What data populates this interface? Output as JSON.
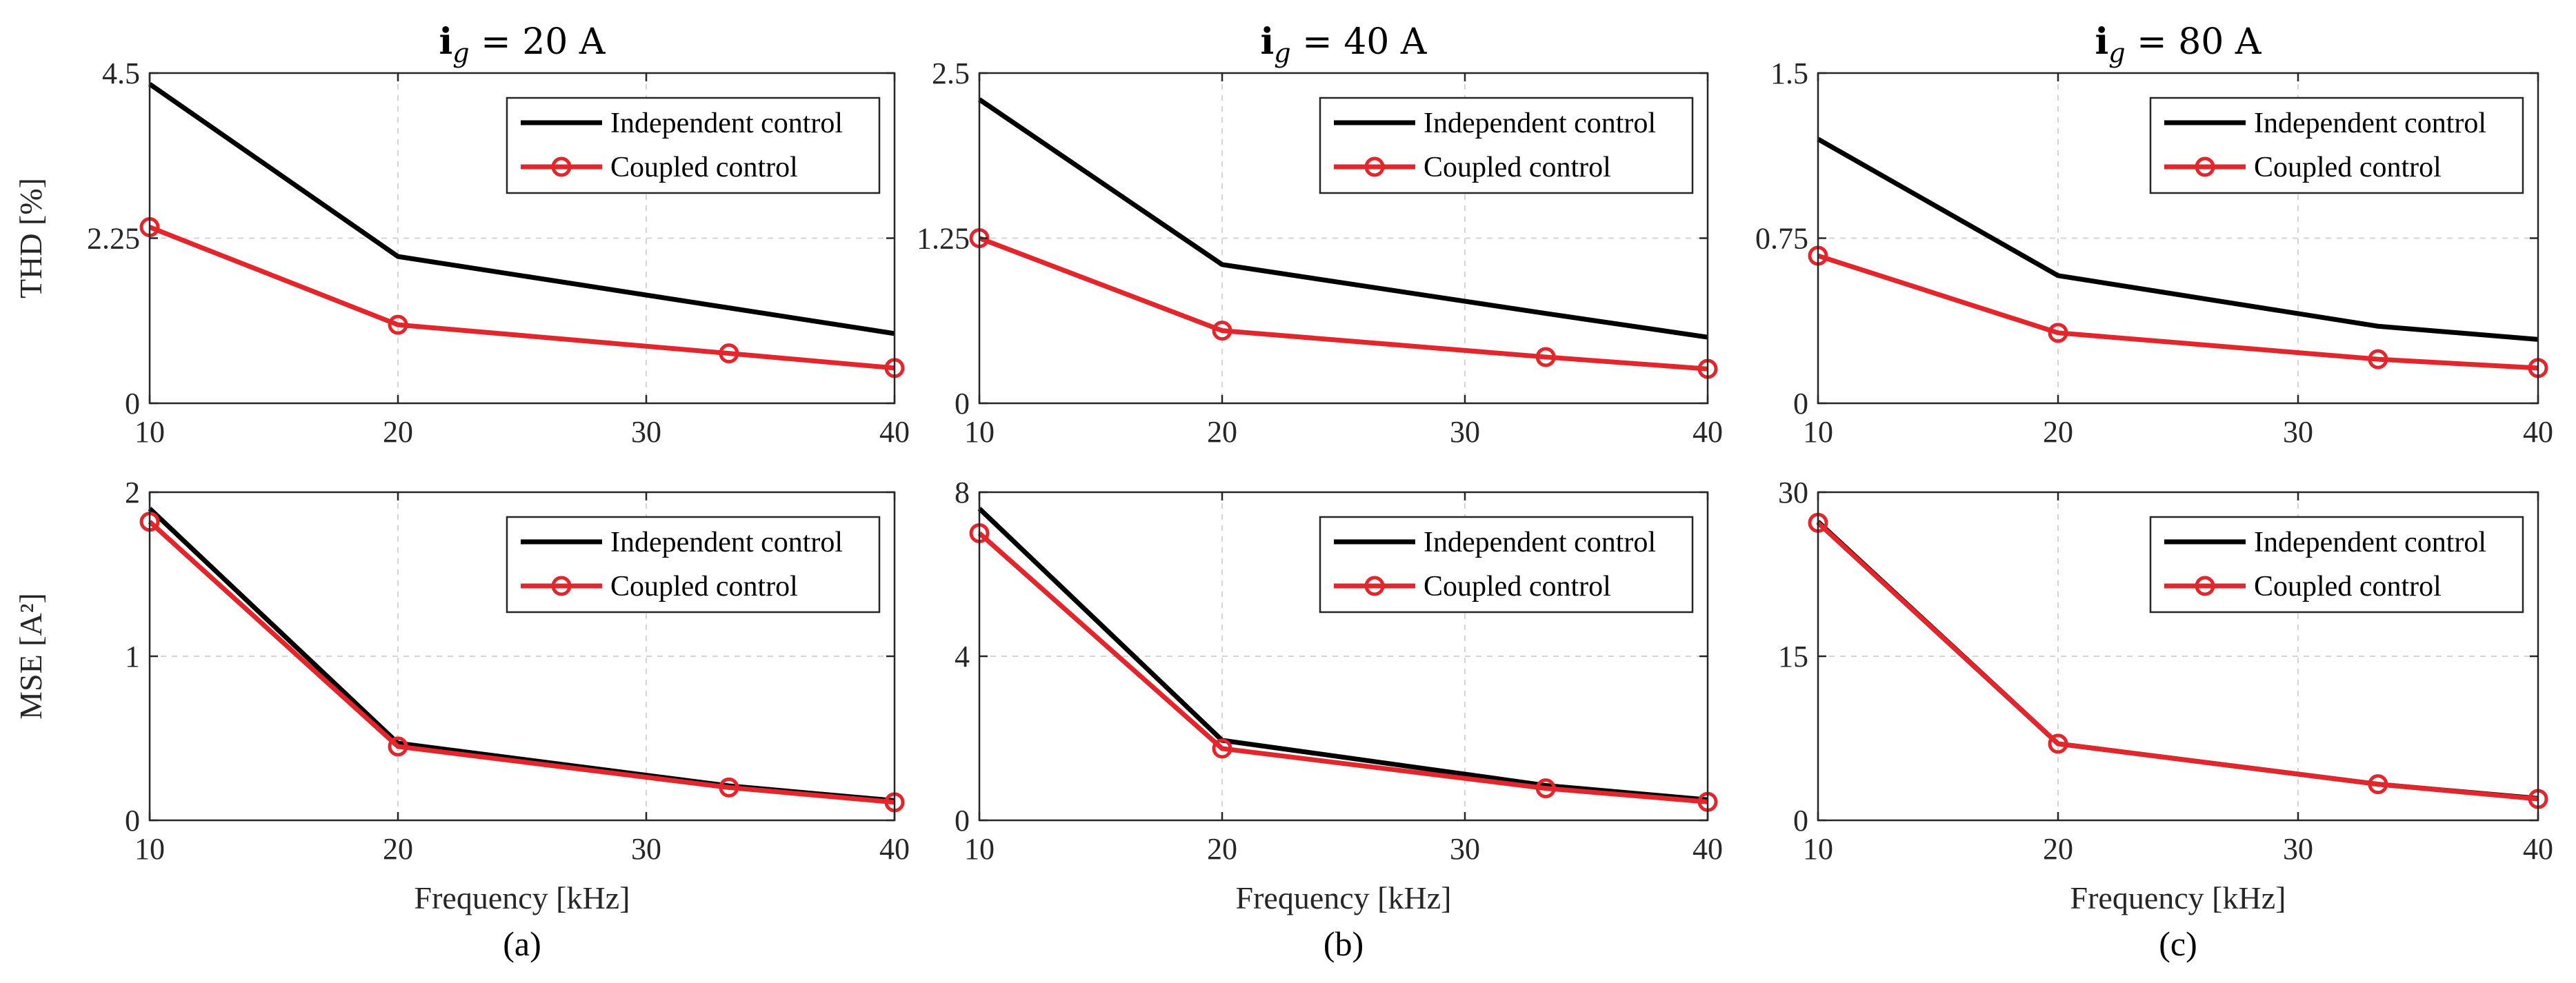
{
  "colors": {
    "independent": "#000000",
    "coupled": "#e3262b"
  },
  "chart_data": [
    {
      "type": "line",
      "panel": "a",
      "row": "top",
      "title": "i_g = 20 A",
      "ylabel": "THD [%]",
      "xlabel": "",
      "xlim": [
        10,
        40
      ],
      "ylim": [
        0,
        4.5
      ],
      "xticks": [
        10,
        20,
        30,
        40
      ],
      "yticks": [
        0,
        2.25,
        4.5
      ],
      "xtick_labels": [
        "10",
        "20",
        "30",
        "40"
      ],
      "ytick_labels": [
        "0",
        "2.25",
        "4.5"
      ],
      "grid": true,
      "legend": "top-right",
      "series": [
        {
          "name": "Independent control",
          "x": [
            10,
            20,
            33.33,
            40
          ],
          "y": [
            4.35,
            2.0,
            1.3,
            0.95
          ],
          "markers": false
        },
        {
          "name": "Coupled control",
          "x": [
            10,
            20,
            33.33,
            40
          ],
          "y": [
            2.4,
            1.07,
            0.68,
            0.48
          ],
          "markers": true
        }
      ]
    },
    {
      "type": "line",
      "panel": "b",
      "row": "top",
      "title": "i_g = 40 A",
      "ylabel": "",
      "xlabel": "",
      "xlim": [
        10,
        40
      ],
      "ylim": [
        0,
        2.5
      ],
      "xticks": [
        10,
        20,
        30,
        40
      ],
      "yticks": [
        0,
        1.25,
        2.5
      ],
      "xtick_labels": [
        "10",
        "20",
        "30",
        "40"
      ],
      "ytick_labels": [
        "0",
        "1.25",
        "2.5"
      ],
      "grid": true,
      "legend": "top-right",
      "series": [
        {
          "name": "Independent control",
          "x": [
            10,
            20,
            33.33,
            40
          ],
          "y": [
            2.3,
            1.05,
            0.68,
            0.5
          ],
          "markers": false
        },
        {
          "name": "Coupled control",
          "x": [
            10,
            20,
            33.33,
            40
          ],
          "y": [
            1.25,
            0.55,
            0.35,
            0.26
          ],
          "markers": true
        }
      ]
    },
    {
      "type": "line",
      "panel": "c",
      "row": "top",
      "title": "i_g = 80 A",
      "ylabel": "",
      "xlabel": "",
      "xlim": [
        10,
        40
      ],
      "ylim": [
        0,
        1.5
      ],
      "xticks": [
        10,
        20,
        30,
        40
      ],
      "yticks": [
        0,
        0.75,
        1.5
      ],
      "xtick_labels": [
        "10",
        "20",
        "30",
        "40"
      ],
      "ytick_labels": [
        "0",
        "0.75",
        "1.5"
      ],
      "grid": true,
      "legend": "top-right",
      "series": [
        {
          "name": "Independent control",
          "x": [
            10,
            20,
            33.33,
            40
          ],
          "y": [
            1.2,
            0.58,
            0.35,
            0.29
          ],
          "markers": false
        },
        {
          "name": "Coupled control",
          "x": [
            10,
            20,
            33.33,
            40
          ],
          "y": [
            0.67,
            0.32,
            0.2,
            0.16
          ],
          "markers": true
        }
      ]
    },
    {
      "type": "line",
      "panel": "a",
      "row": "bottom",
      "title": "",
      "ylabel": "MSE [A²]",
      "xlabel": "Frequency [kHz]",
      "caption": "(a)",
      "xlim": [
        10,
        40
      ],
      "ylim": [
        0,
        2
      ],
      "xticks": [
        10,
        20,
        30,
        40
      ],
      "yticks": [
        0,
        1,
        2
      ],
      "xtick_labels": [
        "10",
        "20",
        "30",
        "40"
      ],
      "ytick_labels": [
        "0",
        "1",
        "2"
      ],
      "grid": true,
      "legend": "top-right",
      "series": [
        {
          "name": "Independent control",
          "x": [
            10,
            20,
            33.33,
            40
          ],
          "y": [
            1.9,
            0.47,
            0.21,
            0.12
          ],
          "markers": false
        },
        {
          "name": "Coupled control",
          "x": [
            10,
            20,
            33.33,
            40
          ],
          "y": [
            1.82,
            0.45,
            0.2,
            0.11
          ],
          "markers": true
        }
      ]
    },
    {
      "type": "line",
      "panel": "b",
      "row": "bottom",
      "title": "",
      "ylabel": "",
      "xlabel": "Frequency [kHz]",
      "caption": "(b)",
      "xlim": [
        10,
        40
      ],
      "ylim": [
        0,
        8
      ],
      "xticks": [
        10,
        20,
        30,
        40
      ],
      "yticks": [
        0,
        4,
        8
      ],
      "xtick_labels": [
        "10",
        "20",
        "30",
        "40"
      ],
      "ytick_labels": [
        "0",
        "4",
        "8"
      ],
      "grid": true,
      "legend": "top-right",
      "series": [
        {
          "name": "Independent control",
          "x": [
            10,
            20,
            33.33,
            40
          ],
          "y": [
            7.6,
            1.95,
            0.85,
            0.5
          ],
          "markers": false
        },
        {
          "name": "Coupled control",
          "x": [
            10,
            20,
            33.33,
            40
          ],
          "y": [
            7.0,
            1.75,
            0.78,
            0.45
          ],
          "markers": true
        }
      ]
    },
    {
      "type": "line",
      "panel": "c",
      "row": "bottom",
      "title": "",
      "ylabel": "",
      "xlabel": "Frequency [kHz]",
      "caption": "(c)",
      "xlim": [
        10,
        40
      ],
      "ylim": [
        0,
        30
      ],
      "xticks": [
        10,
        20,
        30,
        40
      ],
      "yticks": [
        0,
        15,
        30
      ],
      "xtick_labels": [
        "10",
        "20",
        "30",
        "40"
      ],
      "ytick_labels": [
        "0",
        "15",
        "30"
      ],
      "grid": true,
      "legend": "top-right",
      "series": [
        {
          "name": "Independent control",
          "x": [
            10,
            20,
            33.33,
            40
          ],
          "y": [
            27.3,
            7.0,
            3.3,
            2.0
          ],
          "markers": false
        },
        {
          "name": "Coupled control",
          "x": [
            10,
            20,
            33.33,
            40
          ],
          "y": [
            27.2,
            7.0,
            3.3,
            1.95
          ],
          "markers": true
        }
      ]
    }
  ]
}
